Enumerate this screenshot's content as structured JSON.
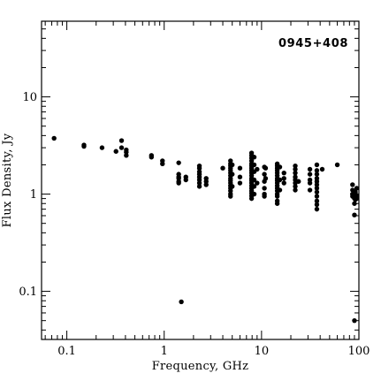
{
  "chart_data": {
    "type": "scatter",
    "title": "",
    "annotation": "0945+408",
    "xlabel": "Frequency, GHz",
    "ylabel": "Flux Density, Jy",
    "xscale": "log",
    "yscale": "log",
    "xlim": [
      0.055,
      100
    ],
    "ylim": [
      0.032,
      60
    ],
    "x_ticks": [
      {
        "value": 0.1,
        "label": "0.1"
      },
      {
        "value": 1,
        "label": "1"
      },
      {
        "value": 10,
        "label": "10"
      },
      {
        "value": 100,
        "label": "100"
      }
    ],
    "y_ticks": [
      {
        "value": 0.1,
        "label": "0.1"
      },
      {
        "value": 1,
        "label": "1"
      },
      {
        "value": 10,
        "label": "10"
      }
    ],
    "grid": false,
    "legend": "none",
    "marker_color": "#000000",
    "series": [
      {
        "points": [
          [
            0.074,
            3.75
          ],
          [
            0.15,
            3.2
          ],
          [
            0.15,
            3.1
          ],
          [
            0.23,
            3.0
          ],
          [
            0.32,
            2.75
          ],
          [
            0.365,
            3.55
          ],
          [
            0.365,
            3.0
          ],
          [
            0.408,
            2.85
          ],
          [
            0.408,
            2.7
          ],
          [
            0.408,
            2.5
          ],
          [
            0.74,
            2.5
          ],
          [
            0.74,
            2.4
          ],
          [
            0.96,
            2.2
          ],
          [
            0.96,
            2.05
          ],
          [
            1.41,
            2.1
          ],
          [
            1.41,
            1.6
          ],
          [
            1.41,
            1.5
          ],
          [
            1.41,
            1.45
          ],
          [
            1.41,
            1.35
          ],
          [
            1.41,
            1.3
          ],
          [
            1.5,
            0.078
          ],
          [
            1.67,
            1.5
          ],
          [
            1.67,
            1.4
          ],
          [
            2.3,
            1.95
          ],
          [
            2.3,
            1.85
          ],
          [
            2.3,
            1.7
          ],
          [
            2.3,
            1.6
          ],
          [
            2.3,
            1.5
          ],
          [
            2.3,
            1.4
          ],
          [
            2.3,
            1.3
          ],
          [
            2.3,
            1.2
          ],
          [
            2.7,
            1.45
          ],
          [
            2.7,
            1.35
          ],
          [
            2.7,
            1.25
          ],
          [
            4.0,
            1.85
          ],
          [
            4.8,
            2.2
          ],
          [
            4.8,
            2.05
          ],
          [
            4.8,
            1.95
          ],
          [
            4.8,
            1.85
          ],
          [
            4.8,
            1.75
          ],
          [
            4.8,
            1.65
          ],
          [
            4.8,
            1.55
          ],
          [
            4.8,
            1.45
          ],
          [
            4.8,
            1.38
          ],
          [
            4.8,
            1.3
          ],
          [
            4.8,
            1.22
          ],
          [
            4.8,
            1.15
          ],
          [
            4.8,
            1.08
          ],
          [
            4.8,
            1.0
          ],
          [
            4.8,
            0.95
          ],
          [
            5.0,
            2.0
          ],
          [
            5.0,
            1.6
          ],
          [
            5.0,
            1.2
          ],
          [
            6.0,
            1.85
          ],
          [
            6.0,
            1.5
          ],
          [
            6.0,
            1.3
          ],
          [
            7.9,
            2.65
          ],
          [
            7.9,
            2.5
          ],
          [
            7.9,
            2.35
          ],
          [
            7.9,
            2.2
          ],
          [
            7.9,
            2.05
          ],
          [
            7.9,
            1.95
          ],
          [
            7.9,
            1.85
          ],
          [
            7.9,
            1.75
          ],
          [
            7.9,
            1.65
          ],
          [
            7.9,
            1.55
          ],
          [
            7.9,
            1.45
          ],
          [
            7.9,
            1.38
          ],
          [
            7.9,
            1.3
          ],
          [
            7.9,
            1.22
          ],
          [
            7.9,
            1.15
          ],
          [
            7.9,
            1.08
          ],
          [
            7.9,
            1.02
          ],
          [
            7.9,
            0.96
          ],
          [
            7.9,
            0.9
          ],
          [
            8.4,
            2.4
          ],
          [
            8.4,
            2.0
          ],
          [
            8.4,
            1.7
          ],
          [
            8.4,
            1.4
          ],
          [
            8.4,
            1.2
          ],
          [
            8.4,
            1.0
          ],
          [
            9.0,
            1.8
          ],
          [
            9.0,
            1.3
          ],
          [
            10.7,
            1.9
          ],
          [
            10.7,
            1.6
          ],
          [
            10.7,
            1.35
          ],
          [
            10.7,
            1.15
          ],
          [
            10.7,
            1.0
          ],
          [
            10.7,
            0.95
          ],
          [
            11.0,
            1.85
          ],
          [
            11.0,
            1.45
          ],
          [
            14.5,
            2.05
          ],
          [
            14.5,
            1.95
          ],
          [
            14.5,
            1.85
          ],
          [
            14.5,
            1.75
          ],
          [
            14.5,
            1.65
          ],
          [
            14.5,
            1.55
          ],
          [
            14.5,
            1.45
          ],
          [
            14.5,
            1.38
          ],
          [
            14.5,
            1.3
          ],
          [
            14.5,
            1.22
          ],
          [
            14.5,
            1.15
          ],
          [
            14.5,
            1.08
          ],
          [
            14.5,
            1.0
          ],
          [
            14.5,
            0.95
          ],
          [
            14.5,
            0.85
          ],
          [
            14.5,
            0.8
          ],
          [
            15.4,
            1.9
          ],
          [
            15.4,
            1.4
          ],
          [
            15.4,
            1.1
          ],
          [
            17.0,
            1.65
          ],
          [
            17.0,
            1.45
          ],
          [
            17.0,
            1.3
          ],
          [
            22.2,
            1.95
          ],
          [
            22.2,
            1.8
          ],
          [
            22.2,
            1.65
          ],
          [
            22.2,
            1.5
          ],
          [
            22.2,
            1.4
          ],
          [
            22.2,
            1.3
          ],
          [
            22.2,
            1.2
          ],
          [
            22.2,
            1.1
          ],
          [
            24.0,
            1.35
          ],
          [
            31.4,
            1.8
          ],
          [
            31.4,
            1.6
          ],
          [
            31.4,
            1.4
          ],
          [
            31.4,
            1.3
          ],
          [
            31.4,
            1.1
          ],
          [
            37.0,
            2.0
          ],
          [
            37.0,
            1.75
          ],
          [
            37.0,
            1.6
          ],
          [
            37.0,
            1.45
          ],
          [
            37.0,
            1.35
          ],
          [
            37.0,
            1.25
          ],
          [
            37.0,
            1.15
          ],
          [
            37.0,
            1.05
          ],
          [
            37.0,
            0.95
          ],
          [
            37.0,
            0.85
          ],
          [
            37.0,
            0.78
          ],
          [
            37.0,
            0.7
          ],
          [
            42.0,
            1.8
          ],
          [
            60.0,
            2.0
          ],
          [
            86.0,
            1.25
          ],
          [
            86.0,
            1.1
          ],
          [
            86.0,
            1.0
          ],
          [
            86.0,
            0.95
          ],
          [
            90.0,
            0.9
          ],
          [
            90.0,
            0.8
          ],
          [
            90.0,
            0.61
          ],
          [
            92.0,
            1.05
          ],
          [
            92.0,
            0.93
          ],
          [
            92.0,
            0.88
          ],
          [
            95.0,
            1.15
          ],
          [
            95.0,
            0.97
          ],
          [
            95.0,
            0.9
          ],
          [
            90.0,
            0.05
          ]
        ]
      }
    ]
  }
}
